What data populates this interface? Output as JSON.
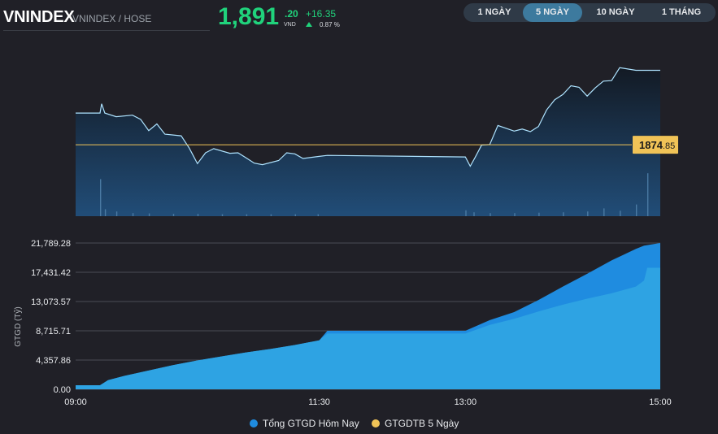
{
  "header": {
    "title": "VNINDEX",
    "subtitle": "VNINDEX / HOSE",
    "price_int": "1,891",
    "price_dec": ".20",
    "price_unit": "VND",
    "change_abs": "+16.35",
    "change_pct": "0.87 %"
  },
  "tabs": [
    {
      "label": "1 NGÀY",
      "active": false
    },
    {
      "label": "5 NGÀY",
      "active": true
    },
    {
      "label": "10 NGÀY",
      "active": false
    },
    {
      "label": "1 THÁNG",
      "active": false
    }
  ],
  "colors": {
    "up": "#20d37c",
    "ref_line": "#f0c357",
    "today": "#1f8ce0",
    "avg5": "#f0c357",
    "price_line": "#aee3ff"
  },
  "chart_data": [
    {
      "type": "line",
      "reference_value": "1874",
      "reference_value_dec": ".85",
      "xlim": [
        "09:00",
        "15:00"
      ],
      "ylim": [
        1861,
        1896
      ],
      "points": [
        [
          "09:00",
          1881.0
        ],
        [
          "09:15",
          1881.0
        ],
        [
          "09:16",
          1882.8
        ],
        [
          "09:18",
          1881.0
        ],
        [
          "09:25",
          1880.3
        ],
        [
          "09:35",
          1880.6
        ],
        [
          "09:40",
          1879.8
        ],
        [
          "09:45",
          1877.6
        ],
        [
          "09:50",
          1878.9
        ],
        [
          "09:55",
          1876.9
        ],
        [
          "10:05",
          1876.6
        ],
        [
          "10:10",
          1874.2
        ],
        [
          "10:15",
          1871.2
        ],
        [
          "10:20",
          1873.3
        ],
        [
          "10:25",
          1874.1
        ],
        [
          "10:35",
          1873.2
        ],
        [
          "10:40",
          1873.3
        ],
        [
          "10:45",
          1872.3
        ],
        [
          "10:50",
          1871.3
        ],
        [
          "10:55",
          1871.0
        ],
        [
          "11:05",
          1871.8
        ],
        [
          "11:10",
          1873.3
        ],
        [
          "11:15",
          1873.1
        ],
        [
          "11:20",
          1872.2
        ],
        [
          "11:30",
          1872.6
        ],
        [
          "11:35",
          1872.8
        ],
        [
          "13:00",
          1872.5
        ],
        [
          "13:03",
          1870.7
        ],
        [
          "13:06",
          1872.4
        ],
        [
          "13:10",
          1874.8
        ],
        [
          "13:15",
          1874.9
        ],
        [
          "13:20",
          1878.6
        ],
        [
          "13:30",
          1877.5
        ],
        [
          "13:35",
          1877.9
        ],
        [
          "13:40",
          1877.4
        ],
        [
          "13:45",
          1878.4
        ],
        [
          "13:50",
          1881.6
        ],
        [
          "13:55",
          1883.6
        ],
        [
          "14:00",
          1884.6
        ],
        [
          "14:05",
          1886.3
        ],
        [
          "14:10",
          1886.0
        ],
        [
          "14:15",
          1884.3
        ],
        [
          "14:20",
          1885.9
        ],
        [
          "14:25",
          1887.2
        ],
        [
          "14:30",
          1887.3
        ],
        [
          "14:35",
          1889.8
        ],
        [
          "14:45",
          1889.3
        ],
        [
          "15:00",
          1889.3
        ]
      ],
      "volume": {
        "ylim": [
          0,
          1
        ],
        "bars": [
          [
            "09:15",
            0.95
          ],
          [
            "09:18",
            0.18
          ],
          [
            "09:25",
            0.12
          ],
          [
            "09:35",
            0.08
          ],
          [
            "09:45",
            0.07
          ],
          [
            "10:00",
            0.06
          ],
          [
            "10:15",
            0.06
          ],
          [
            "10:30",
            0.05
          ],
          [
            "10:45",
            0.05
          ],
          [
            "11:00",
            0.05
          ],
          [
            "11:15",
            0.05
          ],
          [
            "11:29",
            0.05
          ],
          [
            "13:00",
            0.15
          ],
          [
            "13:05",
            0.1
          ],
          [
            "13:15",
            0.08
          ],
          [
            "13:30",
            0.08
          ],
          [
            "13:45",
            0.09
          ],
          [
            "14:00",
            0.1
          ],
          [
            "14:15",
            0.12
          ],
          [
            "14:25",
            0.2
          ],
          [
            "14:35",
            0.14
          ],
          [
            "14:45",
            0.3
          ],
          [
            "14:52",
            1.1
          ]
        ]
      }
    },
    {
      "type": "area",
      "ylabel": "GTGD (Tỷ)",
      "ylim": [
        0,
        21789.28
      ],
      "yticks": [
        "21,789.28",
        "17,431.42",
        "13,073.57",
        "8,715.71",
        "4,357.86",
        "0.00"
      ],
      "ytick_values": [
        21789.28,
        17431.42,
        13073.57,
        8715.71,
        4357.86,
        0
      ],
      "xticks": [
        "09:00",
        "11:30",
        "13:00",
        "15:00"
      ],
      "xlim": [
        "09:00",
        "15:00"
      ],
      "series": [
        {
          "name": "Tổng GTGD Hôm Nay",
          "points": [
            [
              "09:00",
              600
            ],
            [
              "09:15",
              600
            ],
            [
              "09:20",
              1350
            ],
            [
              "09:30",
              2000
            ],
            [
              "09:45",
              2800
            ],
            [
              "10:00",
              3600
            ],
            [
              "10:15",
              4300
            ],
            [
              "10:30",
              4900
            ],
            [
              "10:45",
              5500
            ],
            [
              "11:00",
              6000
            ],
            [
              "11:15",
              6600
            ],
            [
              "11:30",
              7300
            ],
            [
              "11:35",
              8715
            ],
            [
              "13:00",
              8715
            ],
            [
              "13:15",
              10300
            ],
            [
              "13:30",
              11500
            ],
            [
              "13:45",
              13300
            ],
            [
              "14:00",
              15300
            ],
            [
              "14:15",
              17200
            ],
            [
              "14:30",
              19200
            ],
            [
              "14:45",
              20900
            ],
            [
              "14:50",
              21400
            ],
            [
              "15:00",
              21789
            ]
          ]
        },
        {
          "name": "GTGDTB 5 Ngày",
          "points": [
            [
              "09:00",
              600
            ],
            [
              "09:15",
              600
            ],
            [
              "09:20",
              1350
            ],
            [
              "09:30",
              2000
            ],
            [
              "09:45",
              2800
            ],
            [
              "10:00",
              3600
            ],
            [
              "10:15",
              4300
            ],
            [
              "10:30",
              4900
            ],
            [
              "10:45",
              5500
            ],
            [
              "11:00",
              6000
            ],
            [
              "11:15",
              6600
            ],
            [
              "11:30",
              7300
            ],
            [
              "11:35",
              8300
            ],
            [
              "13:00",
              8300
            ],
            [
              "13:15",
              9600
            ],
            [
              "13:30",
              10500
            ],
            [
              "13:45",
              11600
            ],
            [
              "14:00",
              12600
            ],
            [
              "14:15",
              13500
            ],
            [
              "14:30",
              14300
            ],
            [
              "14:45",
              15300
            ],
            [
              "14:50",
              16200
            ],
            [
              "14:52",
              18100
            ],
            [
              "15:00",
              18100
            ]
          ]
        }
      ]
    }
  ]
}
